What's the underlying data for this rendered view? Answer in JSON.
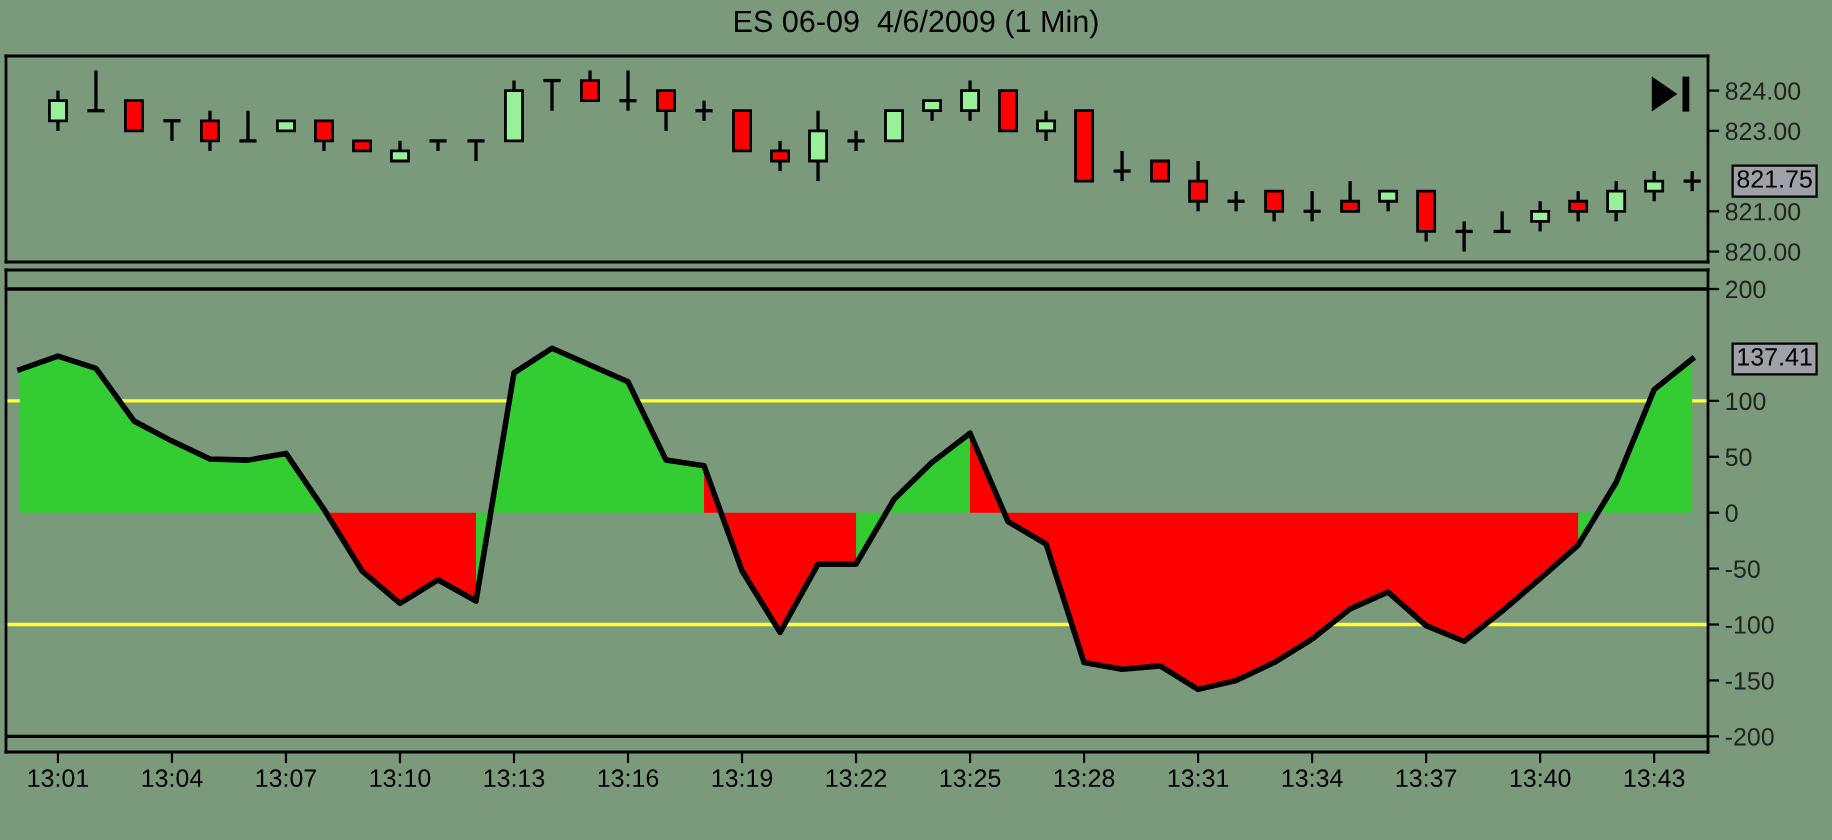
{
  "chart_data": [
    {
      "type": "candlestick",
      "title": "ES 06-09  4/6/2009 (1 Min)",
      "x": [
        "2009-04-06T13:01",
        "2009-04-06T13:02",
        "2009-04-06T13:03",
        "2009-04-06T13:04",
        "2009-04-06T13:05",
        "2009-04-06T13:06",
        "2009-04-06T13:07",
        "2009-04-06T13:08",
        "2009-04-06T13:09",
        "2009-04-06T13:10",
        "2009-04-06T13:11",
        "2009-04-06T13:12",
        "2009-04-06T13:13",
        "2009-04-06T13:14",
        "2009-04-06T13:15",
        "2009-04-06T13:16",
        "2009-04-06T13:17",
        "2009-04-06T13:18",
        "2009-04-06T13:19",
        "2009-04-06T13:20",
        "2009-04-06T13:21",
        "2009-04-06T13:22",
        "2009-04-06T13:23",
        "2009-04-06T13:24",
        "2009-04-06T13:25",
        "2009-04-06T13:26",
        "2009-04-06T13:27",
        "2009-04-06T13:28",
        "2009-04-06T13:29",
        "2009-04-06T13:30",
        "2009-04-06T13:31",
        "2009-04-06T13:32",
        "2009-04-06T13:33",
        "2009-04-06T13:34",
        "2009-04-06T13:35",
        "2009-04-06T13:36",
        "2009-04-06T13:37",
        "2009-04-06T13:38",
        "2009-04-06T13:39",
        "2009-04-06T13:40",
        "2009-04-06T13:41",
        "2009-04-06T13:42",
        "2009-04-06T13:43",
        "2009-04-06T13:44"
      ],
      "ohlc": [
        [
          823.25,
          824,
          823,
          823.75
        ],
        [
          823.5,
          824.5,
          823.5,
          823.5
        ],
        [
          823.75,
          823.75,
          823,
          823
        ],
        [
          823.25,
          823.25,
          822.75,
          823.25
        ],
        [
          823.25,
          823.5,
          822.5,
          822.75
        ],
        [
          822.75,
          823.5,
          822.75,
          822.75
        ],
        [
          823,
          823.25,
          823,
          823.25
        ],
        [
          823.25,
          823.25,
          822.5,
          822.75
        ],
        [
          822.75,
          822.75,
          822.5,
          822.5
        ],
        [
          822.25,
          822.75,
          822.25,
          822.5
        ],
        [
          822.75,
          822.75,
          822.5,
          822.75
        ],
        [
          822.75,
          822.75,
          822.25,
          822.75
        ],
        [
          822.75,
          824.25,
          822.75,
          824
        ],
        [
          824.25,
          824.25,
          823.5,
          824.25
        ],
        [
          824.25,
          824.5,
          823.75,
          823.75
        ],
        [
          823.75,
          824.5,
          823.5,
          823.75
        ],
        [
          824,
          824,
          823,
          823.5
        ],
        [
          823.5,
          823.75,
          823.25,
          823.5
        ],
        [
          823.5,
          823.5,
          822.5,
          822.5
        ],
        [
          822.5,
          822.75,
          822,
          822.25
        ],
        [
          822.25,
          823.5,
          821.75,
          823
        ],
        [
          822.75,
          823,
          822.5,
          822.75
        ],
        [
          822.75,
          823.5,
          822.75,
          823.5
        ],
        [
          823.5,
          823.75,
          823.25,
          823.75
        ],
        [
          823.5,
          824.25,
          823.25,
          824
        ],
        [
          824,
          824,
          823,
          823
        ],
        [
          823,
          823.5,
          822.75,
          823.25
        ],
        [
          823.5,
          823.5,
          821.75,
          821.75
        ],
        [
          822,
          822.5,
          821.75,
          822
        ],
        [
          822.25,
          822.25,
          821.75,
          821.75
        ],
        [
          821.75,
          822.25,
          821,
          821.25
        ],
        [
          821.25,
          821.5,
          821,
          821.25
        ],
        [
          821.5,
          821.5,
          820.75,
          821
        ],
        [
          821,
          821.5,
          820.75,
          821
        ],
        [
          821.25,
          821.75,
          821,
          821
        ],
        [
          821.25,
          821.5,
          821,
          821.5
        ],
        [
          821.5,
          821.5,
          820.25,
          820.5
        ],
        [
          820.5,
          820.75,
          820,
          820.5
        ],
        [
          820.5,
          821,
          820.5,
          820.5
        ],
        [
          820.75,
          821.25,
          820.5,
          821
        ],
        [
          821.25,
          821.5,
          820.75,
          821
        ],
        [
          821,
          821.75,
          820.75,
          821.5
        ],
        [
          821.5,
          822,
          821.25,
          821.75
        ],
        [
          821.75,
          822,
          821.5,
          821.75
        ]
      ],
      "colors": [
        "#98f098",
        "#000000",
        "#ff0000",
        "#000000",
        "#ff0000",
        "#000000",
        "#98f098",
        "#ff0000",
        "#ff0000",
        "#98f098",
        "#000000",
        "#000000",
        "#98f098",
        "#000000",
        "#ff0000",
        "#000000",
        "#ff0000",
        "#000000",
        "#ff0000",
        "#ff0000",
        "#98f098",
        "#000000",
        "#98f098",
        "#98f098",
        "#98f098",
        "#ff0000",
        "#98f098",
        "#ff0000",
        "#000000",
        "#ff0000",
        "#ff0000",
        "#000000",
        "#ff0000",
        "#000000",
        "#ff0000",
        "#98f098",
        "#ff0000",
        "#000000",
        "#000000",
        "#98f098",
        "#ff0000",
        "#98f098",
        "#98f098",
        "#000000"
      ],
      "xlim": [
        "2009-04-06T12:59:38",
        "2009-04-06T13:44:25"
      ],
      "ylim": [
        819.74,
        824.86
      ],
      "yticks": [
        {
          "value": 820,
          "label": "820.00"
        },
        {
          "value": 821,
          "label": "821.00"
        },
        {
          "value": 823,
          "label": "823.00"
        },
        {
          "value": 824,
          "label": "824.00"
        }
      ],
      "tick_labels": "y",
      "annotations": [
        {
          "text": "821.75",
          "x": "2009-04-06T13:44",
          "y": 821.75
        }
      ]
    },
    {
      "type": "area",
      "x": [
        "2009-04-06T13:00",
        "2009-04-06T13:01",
        "2009-04-06T13:02",
        "2009-04-06T13:03",
        "2009-04-06T13:04",
        "2009-04-06T13:05",
        "2009-04-06T13:06",
        "2009-04-06T13:07",
        "2009-04-06T13:08",
        "2009-04-06T13:09",
        "2009-04-06T13:10",
        "2009-04-06T13:11",
        "2009-04-06T13:12",
        "2009-04-06T13:13",
        "2009-04-06T13:14",
        "2009-04-06T13:15",
        "2009-04-06T13:16",
        "2009-04-06T13:17",
        "2009-04-06T13:18",
        "2009-04-06T13:19",
        "2009-04-06T13:20",
        "2009-04-06T13:21",
        "2009-04-06T13:22",
        "2009-04-06T13:23",
        "2009-04-06T13:24",
        "2009-04-06T13:25",
        "2009-04-06T13:26",
        "2009-04-06T13:27",
        "2009-04-06T13:28",
        "2009-04-06T13:29",
        "2009-04-06T13:30",
        "2009-04-06T13:31",
        "2009-04-06T13:32",
        "2009-04-06T13:33",
        "2009-04-06T13:34",
        "2009-04-06T13:35",
        "2009-04-06T13:36",
        "2009-04-06T13:37",
        "2009-04-06T13:38",
        "2009-04-06T13:39",
        "2009-04-06T13:40",
        "2009-04-06T13:41",
        "2009-04-06T13:42",
        "2009-04-06T13:43",
        "2009-04-06T13:44"
      ],
      "series": [
        {
          "type": "area",
          "color": "#33cc33",
          "values": [
            128,
            140,
            129,
            82,
            64,
            48,
            47,
            53,
            3,
            null,
            null,
            null,
            -79,
            125,
            147,
            132,
            117,
            47,
            42,
            null,
            null,
            null,
            -46,
            12,
            45,
            71,
            null,
            null,
            null,
            null,
            null,
            null,
            null,
            null,
            null,
            null,
            null,
            null,
            null,
            null,
            null,
            -29,
            27,
            110,
            137.41
          ]
        },
        {
          "type": "area",
          "color": "#ff0000",
          "values": [
            null,
            null,
            null,
            null,
            null,
            null,
            null,
            null,
            3,
            -52,
            -81,
            -60,
            -79,
            null,
            null,
            null,
            null,
            null,
            42,
            -52,
            -107,
            -46,
            -46,
            null,
            null,
            71,
            -8,
            -28,
            -134,
            -140,
            -137,
            -158,
            -150,
            -134,
            -113,
            -86,
            -71,
            -101,
            -115,
            -88,
            -59,
            -29,
            null,
            null,
            null
          ]
        },
        {
          "type": "line",
          "color": "#000000",
          "values": [
            128,
            140,
            129,
            82,
            64,
            48,
            47,
            53,
            3,
            -52,
            -81,
            -60,
            -79,
            125,
            147,
            132,
            117,
            47,
            42,
            -52,
            -107,
            -46,
            -46,
            12,
            45,
            71,
            -8,
            -28,
            -134,
            -140,
            -137,
            -158,
            -150,
            -134,
            -113,
            -86,
            -71,
            -101,
            -115,
            -88,
            -59,
            -29,
            27,
            110,
            137.41
          ]
        }
      ],
      "xlim": [
        "2009-04-06T12:59:38",
        "2009-04-06T13:44:25"
      ],
      "ylim": [
        -214,
        217
      ],
      "xticks": [
        {
          "value": "2009-04-06T13:01",
          "label": "13:01"
        },
        {
          "value": "2009-04-06T13:04",
          "label": "13:04"
        },
        {
          "value": "2009-04-06T13:07",
          "label": "13:07"
        },
        {
          "value": "2009-04-06T13:10",
          "label": "13:10"
        },
        {
          "value": "2009-04-06T13:13",
          "label": "13:13"
        },
        {
          "value": "2009-04-06T13:16",
          "label": "13:16"
        },
        {
          "value": "2009-04-06T13:19",
          "label": "13:19"
        },
        {
          "value": "2009-04-06T13:22",
          "label": "13:22"
        },
        {
          "value": "2009-04-06T13:25",
          "label": "13:25"
        },
        {
          "value": "2009-04-06T13:28",
          "label": "13:28"
        },
        {
          "value": "2009-04-06T13:31",
          "label": "13:31"
        },
        {
          "value": "2009-04-06T13:34",
          "label": "13:34"
        },
        {
          "value": "2009-04-06T13:37",
          "label": "13:37"
        },
        {
          "value": "2009-04-06T13:40",
          "label": "13:40"
        },
        {
          "value": "2009-04-06T13:43",
          "label": "13:43"
        }
      ],
      "yticks": [
        200,
        100,
        50,
        0,
        -50,
        -100,
        -150,
        -200
      ],
      "ref_lines": [
        {
          "axis": "y",
          "value": 200,
          "color": "#000000"
        },
        {
          "axis": "y",
          "value": 100,
          "color": "#ffff33"
        },
        {
          "axis": "y",
          "value": -100,
          "color": "#ffff33"
        },
        {
          "axis": "y",
          "value": -200,
          "color": "#000000"
        }
      ],
      "annotations": [
        {
          "text": "137.41",
          "x": "2009-04-06T13:44",
          "y": 137.41
        }
      ]
    }
  ]
}
